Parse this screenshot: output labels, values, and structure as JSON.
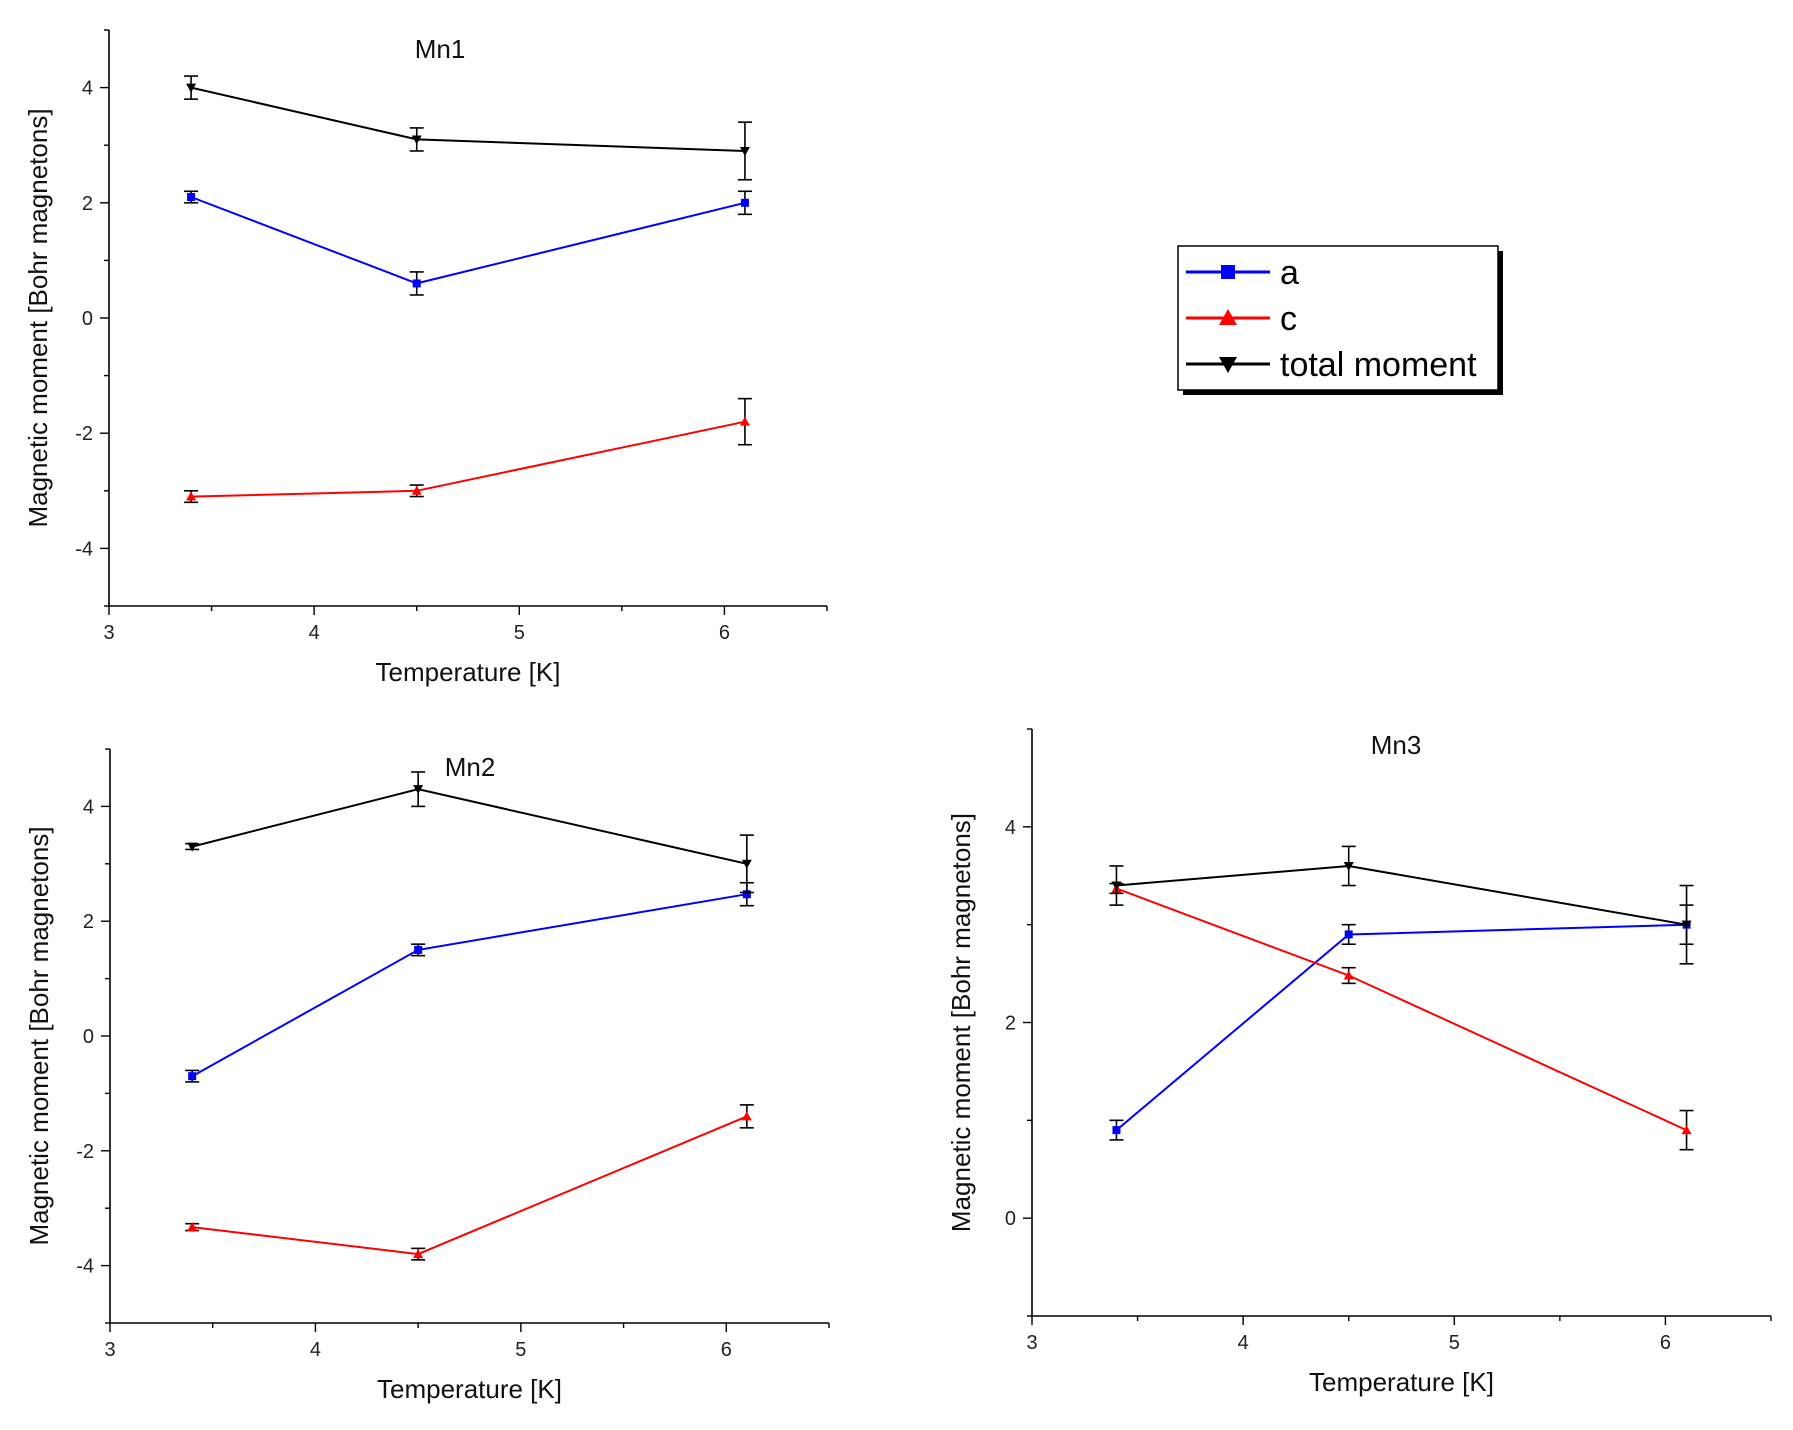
{
  "legend": {
    "items": [
      {
        "label": "a",
        "color": "#0000ff",
        "marker": "square"
      },
      {
        "label": "c",
        "color": "#ff0000",
        "marker": "triangle-up"
      },
      {
        "label": "total moment",
        "color": "#000000",
        "marker": "triangle-down"
      }
    ]
  },
  "chart_data": [
    {
      "type": "line",
      "title": "Mn1",
      "xlabel": "Temperature [K]",
      "ylabel": "Magnetic moment [Bohr magnetons]",
      "xlim": [
        3,
        6.5
      ],
      "ylim": [
        -5,
        5
      ],
      "xticks": [
        3,
        4,
        5,
        6
      ],
      "yticks": [
        -4,
        -2,
        0,
        2,
        4
      ],
      "x": [
        3.4,
        4.5,
        6.1
      ],
      "series": [
        {
          "name": "a",
          "color": "#0000ff",
          "values": [
            2.1,
            0.6,
            2.0
          ],
          "errors": [
            0.1,
            0.2,
            0.2
          ]
        },
        {
          "name": "c",
          "color": "#ff0000",
          "values": [
            -3.1,
            -3.0,
            -1.8
          ],
          "errors": [
            0.1,
            0.1,
            0.4
          ]
        },
        {
          "name": "total moment",
          "color": "#000000",
          "values": [
            4.0,
            3.1,
            2.9
          ],
          "errors": [
            0.2,
            0.2,
            0.5
          ]
        }
      ]
    },
    {
      "type": "line",
      "title": "Mn2",
      "xlabel": "Temperature [K]",
      "ylabel": "Magnetic moment [Bohr magnetons]",
      "xlim": [
        3,
        6.5
      ],
      "ylim": [
        -5,
        5
      ],
      "xticks": [
        3,
        4,
        5,
        6
      ],
      "yticks": [
        -4,
        -2,
        0,
        2,
        4
      ],
      "x": [
        3.4,
        4.5,
        6.1
      ],
      "series": [
        {
          "name": "a",
          "color": "#0000ff",
          "values": [
            -0.7,
            1.5,
            2.47
          ],
          "errors": [
            0.1,
            0.1,
            0.2
          ]
        },
        {
          "name": "c",
          "color": "#ff0000",
          "values": [
            -3.33,
            -3.8,
            -1.4
          ],
          "errors": [
            0.06,
            0.1,
            0.2
          ]
        },
        {
          "name": "total moment",
          "color": "#000000",
          "values": [
            3.3,
            4.3,
            3.0
          ],
          "errors": [
            0.05,
            0.3,
            0.5
          ]
        }
      ]
    },
    {
      "type": "line",
      "title": "Mn3",
      "xlabel": "Temperature [K]",
      "ylabel": "Magnetic moment [Bohr magnetons]",
      "xlim": [
        3,
        6.5
      ],
      "ylim": [
        -1,
        5
      ],
      "xticks": [
        3,
        4,
        5,
        6
      ],
      "yticks": [
        0,
        2,
        4
      ],
      "x": [
        3.4,
        4.5,
        6.1
      ],
      "series": [
        {
          "name": "a",
          "color": "#0000ff",
          "values": [
            0.9,
            2.9,
            3.0
          ],
          "errors": [
            0.1,
            0.1,
            0.2
          ]
        },
        {
          "name": "c",
          "color": "#ff0000",
          "values": [
            3.37,
            2.48,
            0.9
          ],
          "errors": [
            0.05,
            0.08,
            0.2
          ]
        },
        {
          "name": "total moment",
          "color": "#000000",
          "values": [
            3.4,
            3.6,
            3.0
          ],
          "errors": [
            0.2,
            0.2,
            0.4
          ]
        }
      ]
    }
  ]
}
